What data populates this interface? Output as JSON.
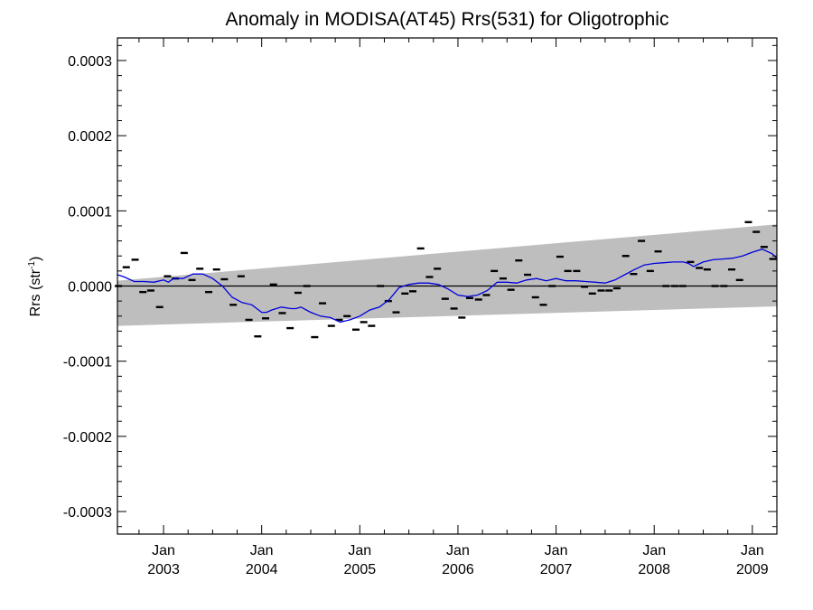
{
  "chart_data": {
    "type": "line",
    "title": "Anomaly in MODISA(AT45) Rrs(531) for Oligotrophic",
    "ylabel": "Rrs (str",
    "ylabel_sup": "-1",
    "ylabel_end": ")",
    "xlim": [
      2002.53,
      2009.25
    ],
    "ylim": [
      -0.00033,
      0.00033
    ],
    "grid": false,
    "zero_line": true,
    "y_ticks": [
      {
        "value": 0.0003,
        "label": "0.0003"
      },
      {
        "value": 0.0002,
        "label": "0.0002"
      },
      {
        "value": 0.0001,
        "label": "0.0001"
      },
      {
        "value": 0.0,
        "label": "0.0000"
      },
      {
        "value": -0.0001,
        "label": "-0.0001"
      },
      {
        "value": -0.0002,
        "label": "-0.0002"
      },
      {
        "value": -0.0003,
        "label": "-0.0003"
      }
    ],
    "x_ticks": [
      {
        "value": 2003.0,
        "month": "Jan",
        "year": "2003"
      },
      {
        "value": 2004.0,
        "month": "Jan",
        "year": "2004"
      },
      {
        "value": 2005.0,
        "month": "Jan",
        "year": "2005"
      },
      {
        "value": 2006.0,
        "month": "Jan",
        "year": "2006"
      },
      {
        "value": 2007.0,
        "month": "Jan",
        "year": "2007"
      },
      {
        "value": 2008.0,
        "month": "Jan",
        "year": "2008"
      },
      {
        "value": 2009.0,
        "month": "Jan",
        "year": "2009"
      }
    ],
    "confidence_band": {
      "x": [
        2002.53,
        2009.25
      ],
      "lower": [
        -5.3e-05,
        -2.7e-05
      ],
      "upper": [
        7e-06,
        8.2e-05
      ],
      "color": "#bebebe"
    },
    "monthly_anomaly": {
      "x": [
        2002.54,
        2002.62,
        2002.71,
        2002.79,
        2002.87,
        2002.96,
        2003.04,
        2003.12,
        2003.21,
        2003.29,
        2003.37,
        2003.46,
        2003.54,
        2003.62,
        2003.71,
        2003.79,
        2003.87,
        2003.96,
        2004.04,
        2004.12,
        2004.21,
        2004.29,
        2004.37,
        2004.46,
        2004.54,
        2004.62,
        2004.71,
        2004.79,
        2004.87,
        2004.96,
        2005.04,
        2005.12,
        2005.21,
        2005.29,
        2005.37,
        2005.46,
        2005.54,
        2005.62,
        2005.71,
        2005.79,
        2005.87,
        2005.96,
        2006.04,
        2006.12,
        2006.21,
        2006.29,
        2006.37,
        2006.46,
        2006.54,
        2006.62,
        2006.71,
        2006.79,
        2006.87,
        2006.96,
        2007.04,
        2007.12,
        2007.21,
        2007.29,
        2007.37,
        2007.46,
        2007.54,
        2007.62,
        2007.71,
        2007.79,
        2007.87,
        2007.96,
        2008.04,
        2008.12,
        2008.21,
        2008.29,
        2008.37,
        2008.46,
        2008.54,
        2008.62,
        2008.71,
        2008.79,
        2008.87,
        2008.96,
        2009.04,
        2009.12,
        2009.21
      ],
      "y": [
        0.0,
        2.5e-05,
        3.5e-05,
        -8e-06,
        -6e-06,
        -2.8e-05,
        1.3e-05,
        1e-05,
        4.4e-05,
        8e-06,
        2.3e-05,
        -8e-06,
        2.2e-05,
        9e-06,
        -2.5e-05,
        1.3e-05,
        -4.5e-05,
        -6.7e-05,
        -4.3e-05,
        2e-06,
        -3.6e-05,
        -5.6e-05,
        -9e-06,
        0.0,
        -6.8e-05,
        -2.3e-05,
        -5.3e-05,
        -4.5e-05,
        -4e-05,
        -5.8e-05,
        -4.8e-05,
        -5.3e-05,
        0.0,
        -2e-05,
        -3.5e-05,
        -1e-05,
        -7e-06,
        5e-05,
        1.2e-05,
        2.3e-05,
        -1.7e-05,
        -3e-05,
        -4.2e-05,
        -1.6e-05,
        -1.8e-05,
        -1.2e-05,
        2e-05,
        1e-05,
        -5e-06,
        3.4e-05,
        1.5e-05,
        -1.5e-05,
        -2.5e-05,
        0.0,
        3.9e-05,
        2e-05,
        2e-05,
        -1e-06,
        -1e-05,
        -6e-06,
        -6e-06,
        -3e-06,
        4e-05,
        1.6e-05,
        6e-05,
        2e-05,
        4.6e-05,
        0.0,
        0.0,
        0.0,
        3.2e-05,
        2.4e-05,
        2.2e-05,
        0.0,
        0.0,
        2.2e-05,
        8e-06,
        8.5e-05,
        7.2e-05,
        5.2e-05,
        3.6e-05
      ]
    },
    "running_mean": {
      "color": "#0000dd",
      "x": [
        2002.53,
        2002.6,
        2002.7,
        2002.8,
        2002.9,
        2003.0,
        2003.05,
        2003.1,
        2003.2,
        2003.3,
        2003.4,
        2003.5,
        2003.6,
        2003.7,
        2003.8,
        2003.9,
        2004.0,
        2004.05,
        2004.1,
        2004.2,
        2004.3,
        2004.35,
        2004.4,
        2004.5,
        2004.6,
        2004.7,
        2004.8,
        2004.9,
        2005.0,
        2005.1,
        2005.2,
        2005.3,
        2005.4,
        2005.5,
        2005.6,
        2005.7,
        2005.8,
        2005.9,
        2006.0,
        2006.1,
        2006.2,
        2006.3,
        2006.4,
        2006.5,
        2006.6,
        2006.7,
        2006.8,
        2006.9,
        2007.0,
        2007.1,
        2007.2,
        2007.3,
        2007.4,
        2007.5,
        2007.6,
        2007.7,
        2007.8,
        2007.9,
        2008.0,
        2008.1,
        2008.2,
        2008.3,
        2008.35,
        2008.4,
        2008.5,
        2008.6,
        2008.7,
        2008.8,
        2008.9,
        2009.0,
        2009.1,
        2009.2,
        2009.25
      ],
      "y": [
        1.5e-05,
        1.2e-05,
        6e-06,
        6e-06,
        5e-06,
        8e-06,
        5e-06,
        1e-05,
        1e-05,
        1.6e-05,
        1.6e-05,
        1e-05,
        0.0,
        -1.5e-05,
        -2.2e-05,
        -2.5e-05,
        -3.5e-05,
        -3.5e-05,
        -3.2e-05,
        -2.8e-05,
        -3e-05,
        -3e-05,
        -2.8e-05,
        -3.5e-05,
        -4e-05,
        -4.2e-05,
        -4.8e-05,
        -4.5e-05,
        -4e-05,
        -3.2e-05,
        -2.8e-05,
        -1.8e-05,
        -2e-06,
        2e-06,
        4e-06,
        4e-06,
        2e-06,
        -4e-06,
        -1.2e-05,
        -1.4e-05,
        -1.2e-05,
        -6e-06,
        5e-06,
        5e-06,
        4e-06,
        8e-06,
        1e-05,
        7e-06,
        1e-05,
        7e-06,
        7e-06,
        6e-06,
        5e-06,
        4e-06,
        8e-06,
        1.5e-05,
        2.2e-05,
        2.8e-05,
        3e-05,
        3.1e-05,
        3.2e-05,
        3.2e-05,
        3e-05,
        2.6e-05,
        3.2e-05,
        3.5e-05,
        3.6e-05,
        3.7e-05,
        4e-05,
        4.5e-05,
        4.9e-05,
        4.3e-05,
        3.7e-05
      ]
    }
  }
}
